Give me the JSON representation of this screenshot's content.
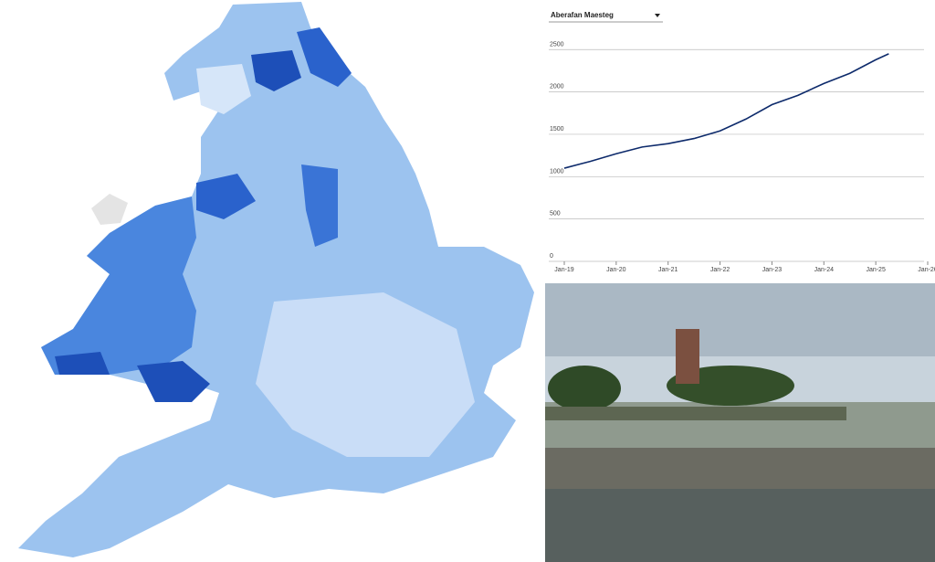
{
  "dropdown": {
    "selected": "Aberafan Maesteg"
  },
  "chart_data": {
    "type": "line",
    "x": [
      2019,
      2019.5,
      2020,
      2020.5,
      2021,
      2021.5,
      2022,
      2022.5,
      2023,
      2023.5,
      2024,
      2024.5,
      2025,
      2025.25
    ],
    "series": [
      {
        "color": "#0d2a6b",
        "values": [
          1100,
          1180,
          1270,
          1350,
          1390,
          1450,
          1540,
          1680,
          1850,
          1960,
          2100,
          2220,
          2380,
          2450
        ]
      }
    ],
    "xlim": [
      2019,
      2026
    ],
    "xticks": [
      {
        "value": 2019,
        "label": "Jan-19"
      },
      {
        "value": 2020,
        "label": "Jan-20"
      },
      {
        "value": 2021,
        "label": "Jan-21"
      },
      {
        "value": 2022,
        "label": "Jan-22"
      },
      {
        "value": 2023,
        "label": "Jan-23"
      },
      {
        "value": 2024,
        "label": "Jan-24"
      },
      {
        "value": 2025,
        "label": "Jan-25"
      },
      {
        "value": 2026,
        "label": "Jan-26"
      }
    ],
    "ylim": [
      0,
      2600
    ],
    "yticks": [
      0,
      500,
      1000,
      1500,
      2000,
      2500
    ],
    "grid": true
  }
}
